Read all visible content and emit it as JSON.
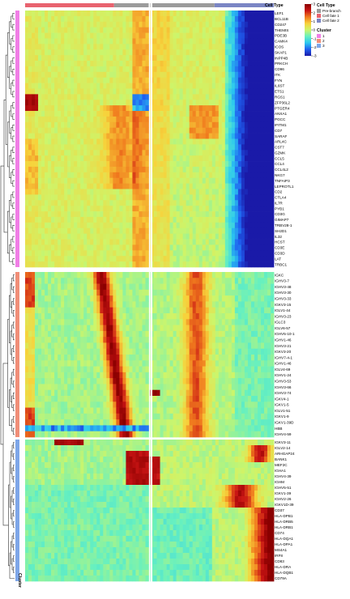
{
  "chart_data": {
    "type": "heatmap",
    "title": "",
    "annotation_label": "Cell Type",
    "cluster_axis_label": "Cluster",
    "legend": {
      "color_title": "",
      "color_ticks": [
        "3",
        "2",
        "1",
        "0",
        "-1",
        "-2",
        "-3"
      ],
      "color_range": [
        -3,
        3
      ],
      "cell_type_title": "Cell Type",
      "cell_types": [
        {
          "name": "Pre-branch",
          "color": "#9b9b9b"
        },
        {
          "name": "Cell fate 1",
          "color": "#e8636f"
        },
        {
          "name": "Cell fate 2",
          "color": "#7b86c4"
        }
      ],
      "cluster_title": "Cluster",
      "clusters": [
        {
          "name": "1",
          "color": "#f07ee6"
        },
        {
          "name": "2",
          "color": "#f08e78"
        },
        {
          "name": "3",
          "color": "#7ea6e8"
        }
      ]
    },
    "scale_colors": [
      "#1a1aa8",
      "#1f5ef0",
      "#2bc7f0",
      "#66f0c0",
      "#cdf56a",
      "#f7d23b",
      "#f07a1e",
      "#c81414",
      "#8a0000"
    ],
    "column_annotation": [
      {
        "type": "Cell fate 1",
        "from": 0.0,
        "to": 0.36
      },
      {
        "type": "Pre-branch",
        "from": 0.36,
        "to": 0.5
      },
      {
        "type": "Pre-branch",
        "from": 0.5,
        "to": 0.76
      },
      {
        "type": "Cell fate 2",
        "from": 0.76,
        "to": 1.0
      }
    ],
    "clusters": [
      {
        "id": "1",
        "pattern": "tcell",
        "genes": [
          "LEF1",
          "BCL11B",
          "CD247",
          "THEMIS",
          "PDE3B",
          "CAMK4",
          "ICOS",
          "SKAP1",
          "INPP4B",
          "PRKCH",
          "CD96",
          "ITK",
          "FYN",
          "IL6ST",
          "ETS1",
          "RGS1",
          "ZFP36L2",
          "PTGER4",
          "ANXA1",
          "PGCC",
          "IFITM1",
          "CD7",
          "SARAF",
          "ARL4C",
          "CST7",
          "GZMK",
          "CCL5",
          "CCL4",
          "CCL4L2",
          "NKG7",
          "TNFAIP3",
          "LEPROTL1",
          "CD2",
          "CTLA4",
          "IL7R",
          "PYB1",
          "CD3G",
          "GIMAP7",
          "TRBV28-1",
          "SH2D1",
          "IL32",
          "HCST",
          "CD3E",
          "CD3D",
          "LAT",
          "TRBC1"
        ]
      },
      {
        "id": "2",
        "pattern": "igk",
        "genes": [
          "IGKC",
          "IGHV3-7",
          "IGHV3-48",
          "IGHV3-30",
          "IGHV3-33",
          "IGKV3-15",
          "IGLV1-44",
          "IGHV3-23",
          "IGLC3",
          "IGLV6-57",
          "IGHV5-10-1",
          "IGHV1-46",
          "IGHV3-21",
          "IGKV3-20",
          "IGHV7-4-1",
          "IGHV1-46",
          "IGLV4-69",
          "IGHV1-24",
          "IGHV3-53",
          "IGHV3-66",
          "IGHV3-74",
          "IGKV4-1",
          "IGKV1-5",
          "IGLV1-51",
          "IGKV1-9",
          "IGKV1-39D",
          "HBB",
          "IGHV4-59"
        ]
      },
      {
        "id": "3",
        "pattern": "bcell",
        "genes": [
          "IGKV3-11",
          "IGLV2-14",
          "ARHGAP24",
          "BANK1",
          "MEF2C",
          "IGHA1",
          "IGHV4-39",
          "IGHM",
          "IGHV5-51",
          "IGKV1-39",
          "IGHV2-26",
          "IGKV1D-39",
          "CD37",
          "HLA-DPB1",
          "HLA-DRB5",
          "HLA-DRB1",
          "CD74",
          "HLA-DQA1",
          "HLA-DPA1",
          "MS4A1",
          "IRF8",
          "CD83",
          "HLA-DRA",
          "HLA-DQB1",
          "CD79A"
        ]
      }
    ]
  }
}
